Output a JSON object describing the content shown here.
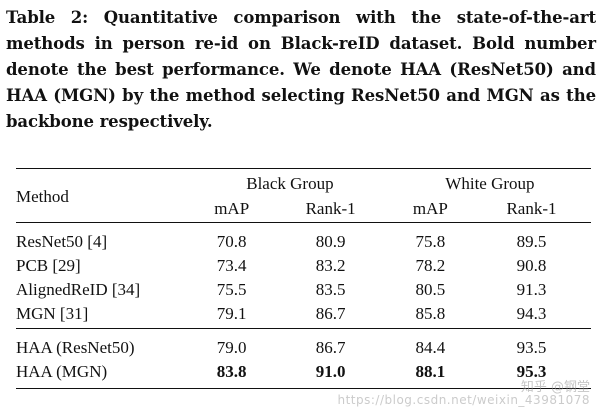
{
  "caption": "Table 2: Quantitative comparison with the state-of-the-art methods in person re-id on Black-reID dataset. Bold number denote the best performance. We denote HAA (ResNet50) and HAA (MGN) by the method selecting ResNet50 and MGN as the backbone respectively.",
  "table": {
    "method_header": "Method",
    "groups": [
      "Black Group",
      "White Group"
    ],
    "metrics": [
      "mAP",
      "Rank-1",
      "mAP",
      "Rank-1"
    ],
    "rows": [
      {
        "method": "ResNet50 [4]",
        "values": [
          "70.8",
          "80.9",
          "75.8",
          "89.5"
        ]
      },
      {
        "method": "PCB [29]",
        "values": [
          "73.4",
          "83.2",
          "78.2",
          "90.8"
        ]
      },
      {
        "method": "AlignedReID [34]",
        "values": [
          "75.5",
          "83.5",
          "80.5",
          "91.3"
        ]
      },
      {
        "method": "MGN [31]",
        "values": [
          "79.1",
          "86.7",
          "85.8",
          "94.3"
        ]
      },
      {
        "method": "HAA (ResNet50)",
        "values": [
          "79.0",
          "86.7",
          "84.4",
          "93.5"
        ]
      },
      {
        "method": "HAA (MGN)",
        "values": [
          "83.8",
          "91.0",
          "88.1",
          "95.3"
        ]
      }
    ]
  },
  "watermark": {
    "site": "知乎 @钢堂",
    "url": "https://blog.csdn.net/weixin_43981078"
  }
}
